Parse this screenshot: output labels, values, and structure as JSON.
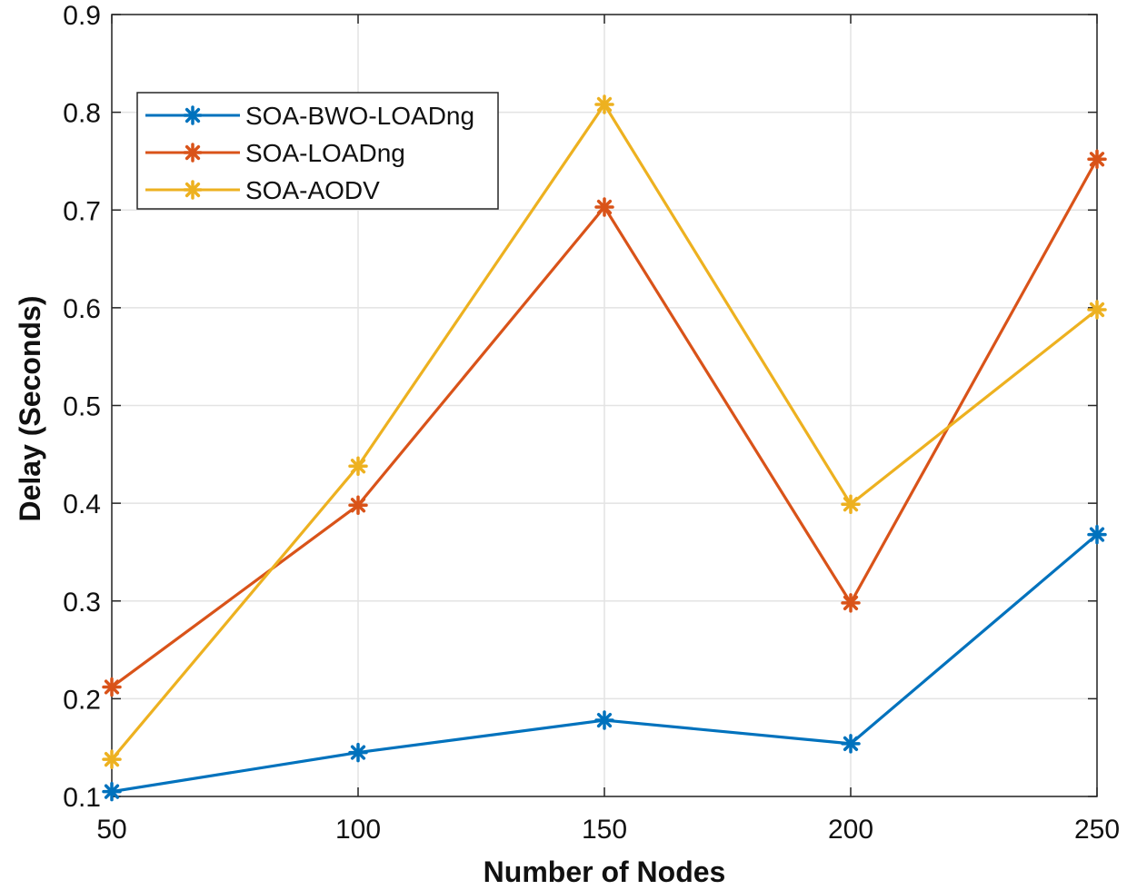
{
  "chart_data": {
    "type": "line",
    "title": "",
    "xlabel": "Number of Nodes",
    "ylabel": "Delay (Seconds)",
    "x": [
      50,
      100,
      150,
      200,
      250
    ],
    "xlim": [
      50,
      250
    ],
    "ylim": [
      0.1,
      0.9
    ],
    "xticks": [
      "50",
      "100",
      "150",
      "200",
      "250"
    ],
    "yticks": [
      "0.1",
      "0.2",
      "0.3",
      "0.4",
      "0.5",
      "0.6",
      "0.7",
      "0.8",
      "0.9"
    ],
    "grid": true,
    "legend_position": "upper-left",
    "series": [
      {
        "name": "SOA-BWO-LOADng",
        "color": "#0072BD",
        "marker": "asterisk",
        "values": [
          0.105,
          0.145,
          0.178,
          0.154,
          0.368
        ]
      },
      {
        "name": "SOA-LOADng",
        "color": "#D95319",
        "marker": "asterisk",
        "values": [
          0.212,
          0.398,
          0.703,
          0.298,
          0.752
        ]
      },
      {
        "name": "SOA-AODV",
        "color": "#EDB120",
        "marker": "asterisk",
        "values": [
          0.138,
          0.438,
          0.808,
          0.399,
          0.598
        ]
      }
    ]
  }
}
